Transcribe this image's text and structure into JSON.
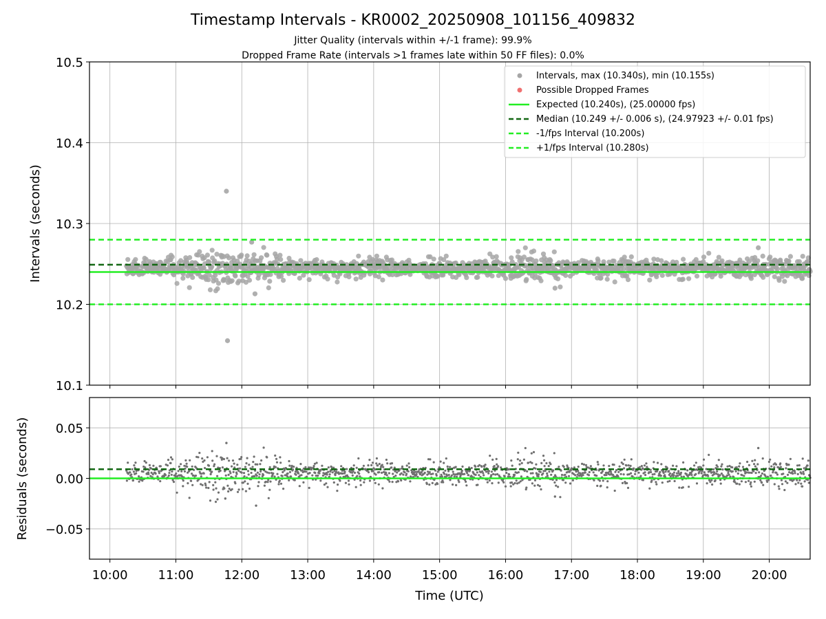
{
  "chart_data": [
    {
      "type": "scatter",
      "title": "Timestamp Intervals - KR0002_20250908_101156_409832",
      "subtitle_lines": [
        "Jitter Quality (intervals within +/-1 frame): 99.9%",
        "Dropped Frame Rate (intervals >1 frames late within 50 FF files): 0.0%"
      ],
      "ylabel": "Intervals (seconds)",
      "ylim": [
        10.1,
        10.5
      ],
      "xlim_hours": [
        9.69,
        20.62
      ],
      "yticks": [
        {
          "value": 10.1,
          "label": "10.1"
        },
        {
          "value": 10.2,
          "label": "10.2"
        },
        {
          "value": 10.3,
          "label": "10.3"
        },
        {
          "value": 10.4,
          "label": "10.4"
        },
        {
          "value": 10.5,
          "label": "10.5"
        }
      ],
      "grid": true,
      "legend_position": "top-right",
      "legend": [
        {
          "label": "Intervals, max (10.340s), min (10.155s)",
          "kind": "marker",
          "color": "#a6a6a6"
        },
        {
          "label": "Possible Dropped Frames",
          "kind": "marker",
          "color": "#f07070"
        },
        {
          "label": "Expected (10.240s), (25.00000 fps)",
          "kind": "solid",
          "color": "#22ee22"
        },
        {
          "label": "Median (10.249 +/- 0.006 s), (24.97923 +/- 0.01 fps)",
          "kind": "dashed",
          "color": "#116611"
        },
        {
          "label": "-1/fps Interval (10.200s)",
          "kind": "dashed",
          "color": "#22ee22"
        },
        {
          "label": "+1/fps Interval (10.280s)",
          "kind": "dashed",
          "color": "#22ee22"
        }
      ],
      "reference_lines": [
        {
          "name": "expected",
          "value": 10.24,
          "style": "solid",
          "color": "#22ee22"
        },
        {
          "name": "median",
          "value": 10.249,
          "style": "dashed",
          "color": "#116611"
        },
        {
          "name": "minus-1-fps",
          "value": 10.2,
          "style": "dashed",
          "color": "#22ee22"
        },
        {
          "name": "plus-1-fps",
          "value": 10.28,
          "style": "dashed",
          "color": "#22ee22"
        }
      ],
      "series": [
        {
          "name": "Intervals, max (10.340s), min (10.155s)",
          "color": "#a6a6a6",
          "x_range_hours": [
            10.25,
            20.62
          ],
          "approx_center": 10.245,
          "notable_points": [
            {
              "x": "11:46",
              "y": 10.34
            },
            {
              "x": "11:47",
              "y": 10.155
            },
            {
              "x": "12:12",
              "y": 10.213
            },
            {
              "x": "12:09",
              "y": 10.277
            },
            {
              "x": "16:45",
              "y": 10.22
            },
            {
              "x": "19:50",
              "y": 10.27
            }
          ]
        },
        {
          "name": "Possible Dropped Frames",
          "color": "#f07070",
          "points": []
        }
      ]
    },
    {
      "type": "scatter",
      "ylabel": "Residuals (seconds)",
      "xlabel": "Time (UTC)",
      "ylim": [
        -0.08,
        0.08
      ],
      "xlim_hours": [
        9.69,
        20.62
      ],
      "yticks": [
        {
          "value": 0.05,
          "label": "0.05"
        },
        {
          "value": 0.0,
          "label": "0.00"
        },
        {
          "value": -0.05,
          "label": "−0.05"
        }
      ],
      "xticks": [
        {
          "value": 10,
          "label": "10:00"
        },
        {
          "value": 11,
          "label": "11:00"
        },
        {
          "value": 12,
          "label": "12:00"
        },
        {
          "value": 13,
          "label": "13:00"
        },
        {
          "value": 14,
          "label": "14:00"
        },
        {
          "value": 15,
          "label": "15:00"
        },
        {
          "value": 16,
          "label": "16:00"
        },
        {
          "value": 17,
          "label": "17:00"
        },
        {
          "value": 18,
          "label": "18:00"
        },
        {
          "value": 19,
          "label": "19:00"
        },
        {
          "value": 20,
          "label": "20:00"
        }
      ],
      "grid": true,
      "reference_lines": [
        {
          "name": "zero",
          "value": 0.0,
          "style": "solid",
          "color": "#22ee22"
        },
        {
          "name": "median-offset",
          "value": 0.009,
          "style": "dashed",
          "color": "#116611"
        }
      ],
      "series": [
        {
          "name": "Residuals",
          "color": "#707070",
          "x_range_hours": [
            10.25,
            20.62
          ],
          "approx_center": 0.005,
          "notable_points": [
            {
              "x": "11:46",
              "y": 0.035
            },
            {
              "x": "12:13",
              "y": -0.027
            },
            {
              "x": "11:45",
              "y": -0.02
            },
            {
              "x": "16:45",
              "y": -0.018
            },
            {
              "x": "19:50",
              "y": 0.03
            }
          ]
        }
      ]
    }
  ]
}
